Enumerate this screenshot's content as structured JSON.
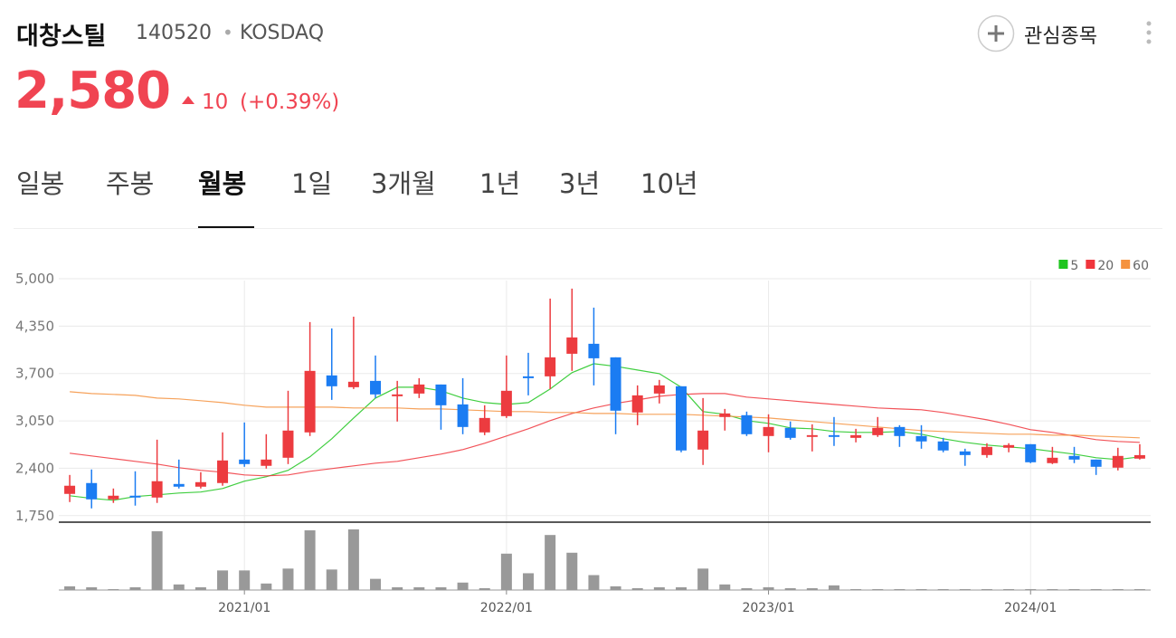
{
  "header": {
    "title": "대창스틸",
    "code": "140520",
    "separator": "•",
    "market": "KOSDAQ",
    "price": "2,580",
    "change": "10",
    "change_rate": "(+0.39%)",
    "watch_button": "관심종목"
  },
  "tabs": {
    "items": [
      "일봉",
      "주봉",
      "월봉",
      "1일",
      "3개월",
      "1년",
      "3년",
      "10년"
    ],
    "active": 2
  },
  "chart_data": {
    "type": "candlestick",
    "categories": [
      null,
      null,
      null,
      null,
      null,
      null,
      null,
      null,
      "2021/01",
      null,
      null,
      null,
      null,
      null,
      null,
      null,
      null,
      null,
      null,
      null,
      "2022/01",
      null,
      null,
      null,
      null,
      null,
      null,
      null,
      null,
      null,
      null,
      null,
      "2023/01",
      null,
      null,
      null,
      null,
      null,
      null,
      null,
      null,
      null,
      null,
      null,
      "2024/01",
      null,
      null,
      null,
      null,
      null
    ],
    "open": [
      2048,
      2197,
      1973,
      2023,
      1998,
      2184,
      2147,
      2197,
      2519,
      2433,
      2544,
      2892,
      3674,
      3512,
      3599,
      3388,
      3425,
      3549,
      3276,
      2892,
      3115,
      3661,
      3661,
      3971,
      4108,
      3922,
      3165,
      3425,
      3525,
      2656,
      3103,
      3128,
      2842,
      2954,
      2830,
      2854,
      2817,
      2854,
      2966,
      2842,
      2768,
      2631,
      2581,
      2681,
      2730,
      2470,
      2569,
      2519,
      2408,
      2532
    ],
    "high": [
      2308,
      2383,
      2122,
      2358,
      2792,
      2519,
      2346,
      2892,
      3028,
      2867,
      3463,
      4406,
      4319,
      4480,
      3947,
      3599,
      3636,
      3549,
      3636,
      3264,
      3947,
      3984,
      4728,
      4865,
      4604,
      3922,
      3537,
      3612,
      3525,
      3363,
      3214,
      3177,
      3140,
      3041,
      3003,
      3103,
      2941,
      3103,
      2991,
      2991,
      2817,
      2668,
      2743,
      2743,
      2730,
      2693,
      2693,
      2519,
      2681,
      2730
    ],
    "low": [
      1936,
      1849,
      1924,
      1887,
      1924,
      2122,
      2122,
      2160,
      2420,
      2395,
      2457,
      2842,
      3338,
      3487,
      3363,
      3041,
      3363,
      2929,
      2867,
      2854,
      3090,
      3400,
      3487,
      3736,
      3537,
      2867,
      2991,
      3289,
      2619,
      2445,
      2917,
      2842,
      2619,
      2792,
      2631,
      2706,
      2755,
      2830,
      2693,
      2668,
      2619,
      2433,
      2544,
      2619,
      2470,
      2457,
      2470,
      2308,
      2370,
      2519
    ],
    "close": [
      2160,
      1973,
      2023,
      1998,
      2222,
      2147,
      2209,
      2507,
      2457,
      2519,
      2917,
      3736,
      3525,
      3587,
      3413,
      3413,
      3549,
      3264,
      2966,
      3090,
      3463,
      3636,
      3922,
      4195,
      3909,
      3190,
      3400,
      3537,
      2644,
      2917,
      3152,
      2867,
      2966,
      2817,
      2854,
      2830,
      2854,
      2954,
      2842,
      2768,
      2644,
      2581,
      2693,
      2718,
      2482,
      2544,
      2519,
      2420,
      2569,
      2580
    ],
    "up_color": "#ec3b3f",
    "down_color": "#1b7cf2",
    "volume": [
      4,
      3,
      1,
      3,
      63,
      6,
      3,
      21,
      21,
      7,
      23,
      64,
      22,
      65,
      12,
      3,
      3,
      3,
      8,
      2,
      39,
      18,
      59,
      40,
      16,
      4,
      2,
      3,
      3,
      23,
      6,
      2,
      3,
      2,
      2,
      5,
      1,
      1,
      1,
      1,
      1,
      1,
      1,
      1,
      1,
      1,
      1,
      1,
      1,
      1
    ],
    "volume_color": "#999999",
    "series": [
      {
        "name": "5",
        "color": "#1ec51e",
        "values": [
          2023,
          1986,
          1961,
          2011,
          2035,
          2060,
          2073,
          2122,
          2222,
          2284,
          2371,
          2557,
          2805,
          3090,
          3363,
          3512,
          3512,
          3463,
          3363,
          3301,
          3276,
          3301,
          3487,
          3711,
          3835,
          3798,
          3748,
          3698,
          3512,
          3177,
          3140,
          3053,
          3016,
          2954,
          2941,
          2904,
          2892,
          2892,
          2904,
          2867,
          2805,
          2755,
          2718,
          2693,
          2668,
          2631,
          2594,
          2544,
          2519,
          2557
        ]
      },
      {
        "name": "20",
        "color": "#f0353c",
        "values": [
          2606,
          2569,
          2532,
          2495,
          2457,
          2408,
          2371,
          2346,
          2308,
          2296,
          2308,
          2358,
          2395,
          2433,
          2470,
          2495,
          2544,
          2594,
          2656,
          2743,
          2842,
          2941,
          3053,
          3152,
          3227,
          3289,
          3338,
          3388,
          3413,
          3425,
          3425,
          3376,
          3351,
          3326,
          3301,
          3276,
          3252,
          3227,
          3214,
          3202,
          3165,
          3115,
          3065,
          3003,
          2929,
          2892,
          2842,
          2792,
          2768,
          2755
        ]
      },
      {
        "name": "60",
        "color": "#f5923e",
        "values": [
          3450,
          3425,
          3413,
          3400,
          3363,
          3351,
          3326,
          3301,
          3264,
          3239,
          3239,
          3239,
          3239,
          3227,
          3227,
          3227,
          3214,
          3214,
          3202,
          3190,
          3177,
          3177,
          3165,
          3165,
          3152,
          3152,
          3140,
          3140,
          3140,
          3128,
          3115,
          3103,
          3090,
          3065,
          3041,
          3016,
          2991,
          2966,
          2941,
          2917,
          2904,
          2892,
          2879,
          2867,
          2867,
          2854,
          2854,
          2842,
          2830,
          2817
        ]
      }
    ],
    "ylim": [
      1660,
      5100
    ],
    "yticks": [
      {
        "value": 1750,
        "label": "1,750"
      },
      {
        "value": 2400,
        "label": "2,400"
      },
      {
        "value": 3050,
        "label": "3,050"
      },
      {
        "value": 3700,
        "label": "3,700"
      },
      {
        "value": 4350,
        "label": "4,350"
      },
      {
        "value": 5000,
        "label": "5,000"
      }
    ],
    "grid": true,
    "legend": "top-right"
  }
}
